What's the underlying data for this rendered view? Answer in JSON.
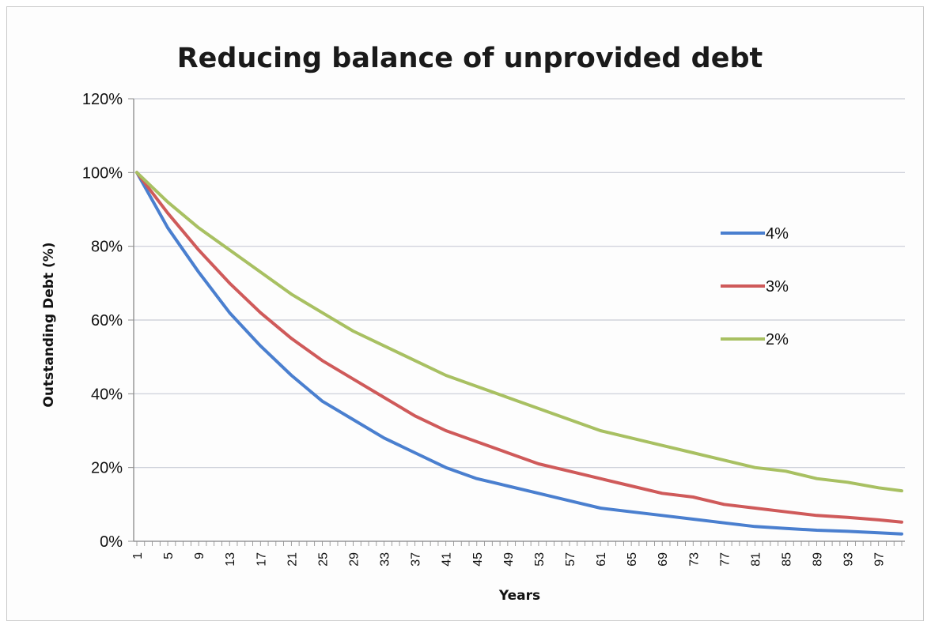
{
  "chart_data": {
    "type": "line",
    "title": "Reducing balance of unprovided debt",
    "xlabel": "Years",
    "ylabel": "Outstanding Debt (%)",
    "ylim": [
      0,
      1.2
    ],
    "yticks": [
      "0%",
      "20%",
      "40%",
      "60%",
      "80%",
      "100%",
      "120%"
    ],
    "xlim": [
      1,
      100
    ],
    "xticks": [
      1,
      5,
      9,
      13,
      17,
      21,
      25,
      29,
      33,
      37,
      41,
      45,
      49,
      53,
      57,
      61,
      65,
      69,
      73,
      77,
      81,
      85,
      89,
      93,
      97
    ],
    "grid": true,
    "legend": "right",
    "x": [
      1,
      5,
      9,
      13,
      17,
      21,
      25,
      29,
      33,
      37,
      41,
      45,
      49,
      53,
      57,
      61,
      65,
      69,
      73,
      77,
      81,
      85,
      89,
      93,
      97,
      100
    ],
    "series": [
      {
        "name": "4%",
        "color": "#4a7fcf",
        "values": [
          1.0,
          0.85,
          0.73,
          0.62,
          0.53,
          0.45,
          0.38,
          0.33,
          0.28,
          0.24,
          0.2,
          0.17,
          0.15,
          0.13,
          0.11,
          0.09,
          0.08,
          0.07,
          0.06,
          0.05,
          0.04,
          0.035,
          0.03,
          0.027,
          0.023,
          0.02
        ]
      },
      {
        "name": "3%",
        "color": "#cf5a5a",
        "values": [
          1.0,
          0.89,
          0.79,
          0.7,
          0.62,
          0.55,
          0.49,
          0.44,
          0.39,
          0.34,
          0.3,
          0.27,
          0.24,
          0.21,
          0.19,
          0.17,
          0.15,
          0.13,
          0.12,
          0.1,
          0.09,
          0.08,
          0.07,
          0.065,
          0.058,
          0.052
        ]
      },
      {
        "name": "2%",
        "color": "#a8c062",
        "values": [
          1.0,
          0.92,
          0.85,
          0.79,
          0.73,
          0.67,
          0.62,
          0.57,
          0.53,
          0.49,
          0.45,
          0.42,
          0.39,
          0.36,
          0.33,
          0.3,
          0.28,
          0.26,
          0.24,
          0.22,
          0.2,
          0.19,
          0.17,
          0.16,
          0.145,
          0.137
        ]
      }
    ]
  }
}
